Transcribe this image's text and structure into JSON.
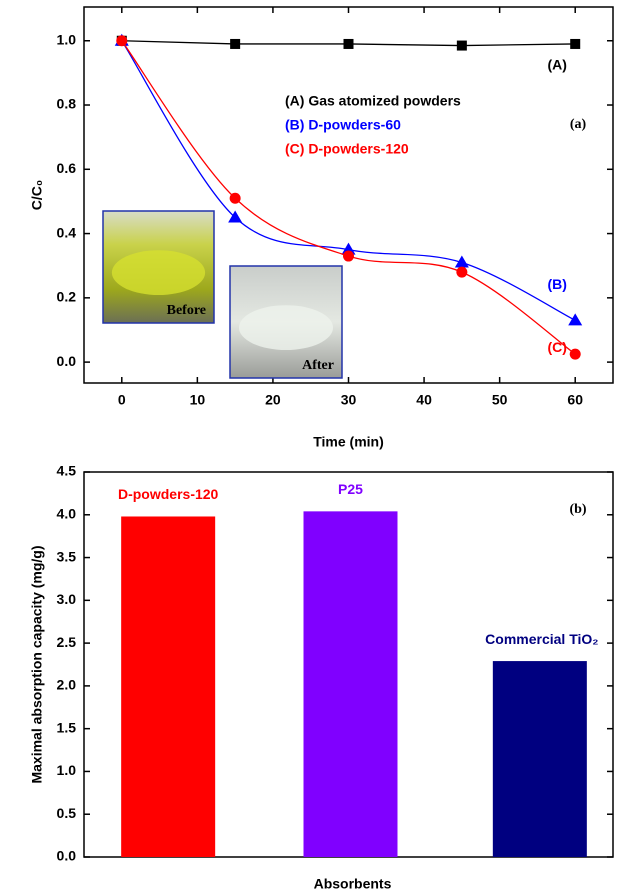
{
  "chart_data": [
    {
      "type": "line",
      "panel_label": "(a)",
      "xlabel": "Time (min)",
      "ylabel": "C/C₀",
      "x": [
        0,
        15,
        30,
        45,
        60
      ],
      "series": [
        {
          "name": "(A) Gas atomized powders",
          "end_label": "(A)",
          "color": "#000000",
          "marker": "square",
          "smooth": false,
          "values": [
            1.0,
            0.99,
            0.99,
            0.985,
            0.99
          ]
        },
        {
          "name": "(B) D-powders-60",
          "end_label": "(B)",
          "color": "#0000ff",
          "marker": "triangle",
          "smooth": true,
          "values": [
            1.0,
            0.45,
            0.35,
            0.31,
            0.13
          ]
        },
        {
          "name": "(C) D-powders-120",
          "end_label": "(C)",
          "color": "#ff0000",
          "marker": "circle",
          "smooth": true,
          "values": [
            1.0,
            0.51,
            0.33,
            0.28,
            0.025
          ]
        }
      ],
      "inset_labels": [
        "Before",
        "After"
      ],
      "xlim": [
        -5,
        65
      ],
      "xticks": [
        0,
        10,
        20,
        30,
        40,
        50,
        60
      ],
      "ylim": [
        -0.065,
        1.105
      ],
      "yticks": [
        {
          "value": 0,
          "label": "0.0"
        },
        0.2,
        0.4,
        0.6,
        0.8,
        {
          "value": 1,
          "label": "1.0"
        }
      ]
    },
    {
      "type": "bar",
      "panel_label": "(b)",
      "xlabel": "Absorbents",
      "ylabel": "Maximal absorption capacity (mg/g)",
      "categories": [
        "D-powders-120",
        "P25",
        "Commercial TiO₂"
      ],
      "values": [
        3.98,
        4.04,
        2.29
      ],
      "colors": [
        "#ff0000",
        "#8000ff",
        "#000080"
      ],
      "ylim": [
        0,
        4.5
      ],
      "yticks": [
        {
          "value": 0,
          "label": "0.0"
        },
        0.5,
        {
          "value": 1,
          "label": "1.0"
        },
        1.5,
        {
          "value": 2,
          "label": "2.0"
        },
        2.5,
        {
          "value": 3,
          "label": "3.0"
        },
        3.5,
        {
          "value": 4,
          "label": "4.0"
        },
        4.5
      ]
    }
  ]
}
